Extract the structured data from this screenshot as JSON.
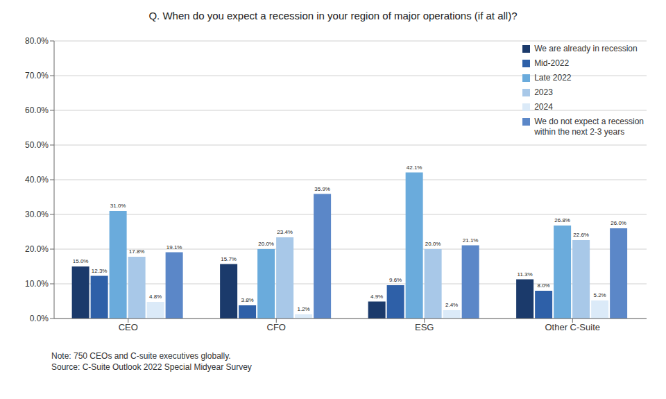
{
  "chart_data": {
    "type": "bar",
    "title": "Q. When do you expect a recession in your region of major operations (if at all)?",
    "categories": [
      "CEO",
      "CFO",
      "ESG",
      "Other C-Suite"
    ],
    "series": [
      {
        "name": "We are already in recession",
        "color": "#1b3a6b",
        "values": [
          15.0,
          15.7,
          4.9,
          11.3
        ],
        "value_labels": [
          "15.0%",
          "15.7%",
          "4.9%",
          "11.3%"
        ]
      },
      {
        "name": "Mid-2022",
        "color": "#2e60a8",
        "values": [
          12.3,
          3.8,
          9.6,
          8.0
        ],
        "value_labels": [
          "12.3%",
          "3.8%",
          "9.6%",
          "8.0%"
        ]
      },
      {
        "name": "Late 2022",
        "color": "#6aabdc",
        "values": [
          31.0,
          20.0,
          42.1,
          26.8
        ],
        "value_labels": [
          "31.0%",
          "20.0%",
          "42.1%",
          "26.8%"
        ]
      },
      {
        "name": "2023",
        "color": "#a8c8e8",
        "values": [
          17.8,
          23.4,
          20.0,
          22.6
        ],
        "value_labels": [
          "17.8%",
          "23.4%",
          "20.0%",
          "22.6%"
        ]
      },
      {
        "name": "2024",
        "color": "#dbeaf8",
        "values": [
          4.8,
          1.2,
          2.4,
          5.2
        ],
        "value_labels": [
          "4.8%",
          "1.2%",
          "2.4%",
          "5.2%"
        ]
      },
      {
        "name": "We do not expect a recession\nwithin the next 2-3 years",
        "color": "#5b87c8",
        "values": [
          19.1,
          35.9,
          21.1,
          26.0
        ],
        "value_labels": [
          "19.1%",
          "35.9%",
          "21.1%",
          "26.0%"
        ]
      }
    ],
    "ylim": [
      0,
      80
    ],
    "yticks": [
      {
        "value": 0,
        "label": "0.0%"
      },
      {
        "value": 10,
        "label": "10.0%"
      },
      {
        "value": 20,
        "label": "20.0%"
      },
      {
        "value": 30,
        "label": "30.0%"
      },
      {
        "value": 40,
        "label": "40.0%"
      },
      {
        "value": 50,
        "label": "50.0%"
      },
      {
        "value": 60,
        "label": "60.0%"
      },
      {
        "value": 70,
        "label": "70.0%"
      },
      {
        "value": 80,
        "label": "80.0%"
      }
    ],
    "grid": true,
    "legend": "upper right",
    "data_labels": true,
    "annotations": [
      "Note: 750 CEOs and C-suite executives globally.",
      "Source: C-Suite Outlook 2022 Special Midyear Survey"
    ]
  }
}
